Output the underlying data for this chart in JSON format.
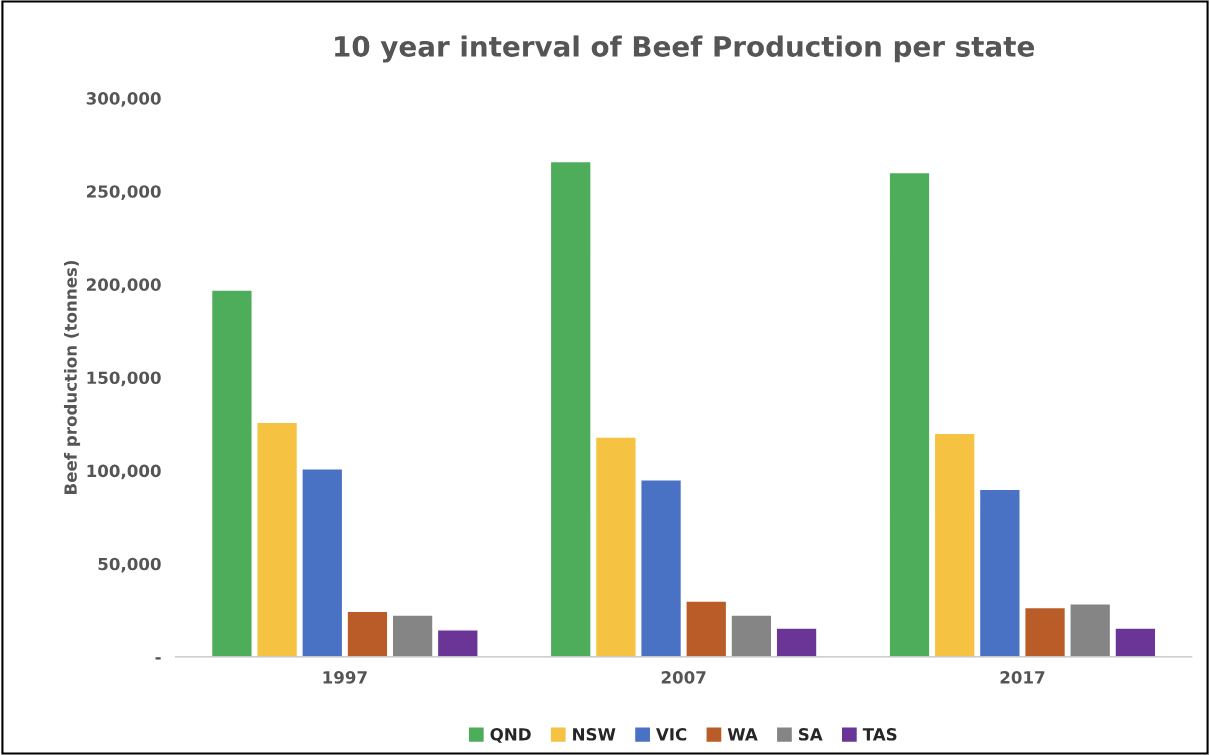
{
  "chart_data": {
    "type": "bar",
    "title": "10 year interval of Beef Production per state",
    "ylabel": "Beef production (tonnes)",
    "categories": [
      "1997",
      "2007",
      "2017"
    ],
    "series": [
      {
        "name": "QND",
        "color": "#4dad5b",
        "values": [
          197000,
          266000,
          260000
        ]
      },
      {
        "name": "NSW",
        "color": "#f5c242",
        "values": [
          126000,
          118000,
          120000
        ]
      },
      {
        "name": "VIC",
        "color": "#4a72c4",
        "values": [
          101000,
          95000,
          90000
        ]
      },
      {
        "name": "WA",
        "color": "#b95c27",
        "values": [
          24500,
          30000,
          26500
        ]
      },
      {
        "name": "SA",
        "color": "#858585",
        "values": [
          22500,
          22500,
          28500
        ]
      },
      {
        "name": "TAS",
        "color": "#6a3596",
        "values": [
          14500,
          15500,
          15500
        ]
      }
    ],
    "ylim": [
      0,
      300000
    ],
    "yticks": [
      {
        "value": 0,
        "label": "-"
      },
      {
        "value": 50000,
        "label": "50,000"
      },
      {
        "value": 100000,
        "label": "100,000"
      },
      {
        "value": 150000,
        "label": "150,000"
      },
      {
        "value": 200000,
        "label": "200,000"
      },
      {
        "value": 250000,
        "label": "250,000"
      },
      {
        "value": 300000,
        "label": "300,000"
      }
    ],
    "grid": false,
    "legend": "bottom"
  }
}
